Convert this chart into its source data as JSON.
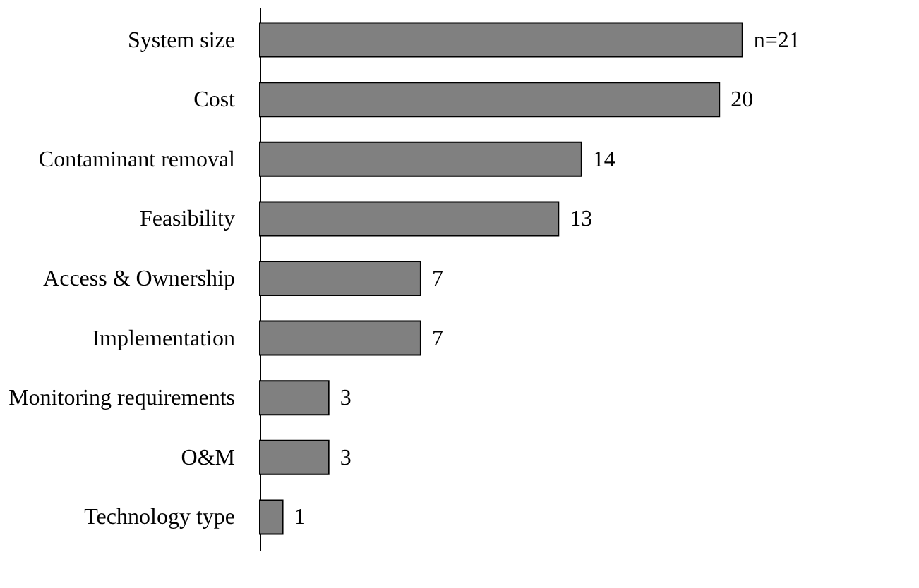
{
  "chart_data": {
    "type": "bar",
    "orientation": "horizontal",
    "categories": [
      "System size",
      "Cost",
      "Contaminant removal",
      "Feasibility",
      "Access & Ownership",
      "Implementation",
      "Monitoring requirements",
      "O&M",
      "Technology type"
    ],
    "values": [
      21,
      20,
      14,
      13,
      7,
      7,
      3,
      3,
      1
    ],
    "value_labels": [
      "n=21",
      "20",
      "14",
      "13",
      "7",
      "7",
      "3",
      "3",
      "1"
    ],
    "color": "#808080",
    "grid": false,
    "tick_labels": "y"
  }
}
